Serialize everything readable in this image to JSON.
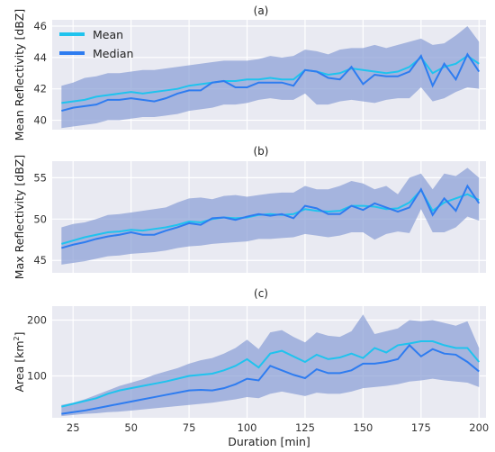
{
  "colors": {
    "mean": "#1fc3ee",
    "median": "#2e7cf0",
    "band": "#8a9fd6",
    "panel_bg": "#e9eaf2",
    "grid": "#ffffff"
  },
  "chart_data": [
    {
      "type": "line",
      "title": "(a)",
      "ylabel": "Mean Reflectivity [dBZ]",
      "xlabel": "",
      "xlim": [
        16,
        203
      ],
      "ylim": [
        39.4,
        46.4
      ],
      "xticks": [
        25,
        50,
        75,
        100,
        125,
        150,
        175,
        200
      ],
      "xtick_labels": [
        "",
        "",
        "",
        "",
        "",
        "",
        "",
        ""
      ],
      "yticks": [
        40,
        42,
        44,
        46
      ],
      "ytick_labels": [
        "40",
        "42",
        "44",
        "46"
      ],
      "grid": true,
      "legend": {
        "placement": "top-left",
        "entries": [
          "Mean",
          "Median"
        ]
      },
      "x": [
        20,
        25,
        30,
        35,
        40,
        45,
        50,
        55,
        60,
        65,
        70,
        75,
        80,
        85,
        90,
        95,
        100,
        105,
        110,
        115,
        120,
        125,
        130,
        135,
        140,
        145,
        150,
        155,
        160,
        165,
        170,
        175,
        180,
        185,
        190,
        195,
        200
      ],
      "series": [
        {
          "name": "Mean",
          "values": [
            41.1,
            41.2,
            41.3,
            41.5,
            41.6,
            41.7,
            41.8,
            41.7,
            41.8,
            41.9,
            42.0,
            42.2,
            42.3,
            42.4,
            42.5,
            42.5,
            42.6,
            42.6,
            42.7,
            42.6,
            42.6,
            43.2,
            43.1,
            42.9,
            43.0,
            43.3,
            43.2,
            43.1,
            43.0,
            43.1,
            43.4,
            44.0,
            43.0,
            43.4,
            43.6,
            44.1,
            43.6
          ]
        },
        {
          "name": "Median",
          "values": [
            40.6,
            40.8,
            40.9,
            41.0,
            41.3,
            41.3,
            41.4,
            41.3,
            41.2,
            41.4,
            41.7,
            41.9,
            41.9,
            42.4,
            42.5,
            42.1,
            42.1,
            42.4,
            42.4,
            42.4,
            42.2,
            43.2,
            43.1,
            42.7,
            42.6,
            43.4,
            42.3,
            42.9,
            42.8,
            42.8,
            43.1,
            44.1,
            42.2,
            43.6,
            42.6,
            44.2,
            43.1
          ]
        }
      ],
      "band_upper": [
        42.2,
        42.4,
        42.7,
        42.8,
        43.0,
        43.0,
        43.1,
        43.2,
        43.2,
        43.3,
        43.4,
        43.5,
        43.6,
        43.7,
        43.8,
        43.8,
        43.8,
        43.9,
        44.1,
        44.0,
        44.1,
        44.5,
        44.4,
        44.2,
        44.5,
        44.6,
        44.6,
        44.8,
        44.6,
        44.8,
        45.0,
        45.2,
        44.8,
        44.9,
        45.4,
        46.0,
        45.0
      ],
      "band_lower": [
        39.5,
        39.6,
        39.7,
        39.8,
        40.0,
        40.0,
        40.1,
        40.2,
        40.2,
        40.3,
        40.4,
        40.6,
        40.7,
        40.8,
        41.0,
        41.0,
        41.1,
        41.3,
        41.4,
        41.3,
        41.3,
        41.7,
        41.0,
        41.0,
        41.2,
        41.3,
        41.2,
        41.1,
        41.3,
        41.4,
        41.4,
        42.1,
        41.2,
        41.4,
        41.8,
        42.1,
        42.0
      ]
    },
    {
      "type": "line",
      "title": "(b)",
      "ylabel": "Max Reflectivity [dBZ]",
      "xlabel": "",
      "xlim": [
        16,
        203
      ],
      "ylim": [
        43.5,
        57.0
      ],
      "xticks": [
        25,
        50,
        75,
        100,
        125,
        150,
        175,
        200
      ],
      "xtick_labels": [
        "",
        "",
        "",
        "",
        "",
        "",
        "",
        ""
      ],
      "yticks": [
        45,
        50,
        55
      ],
      "ytick_labels": [
        "45",
        "50",
        "55"
      ],
      "grid": true,
      "x": [
        20,
        25,
        30,
        35,
        40,
        45,
        50,
        55,
        60,
        65,
        70,
        75,
        80,
        85,
        90,
        95,
        100,
        105,
        110,
        115,
        120,
        125,
        130,
        135,
        140,
        145,
        150,
        155,
        160,
        165,
        170,
        175,
        180,
        185,
        190,
        195,
        200
      ],
      "series": [
        {
          "name": "Mean",
          "values": [
            47.0,
            47.4,
            47.8,
            48.1,
            48.4,
            48.5,
            48.7,
            48.6,
            48.8,
            49.0,
            49.3,
            49.7,
            49.6,
            50.0,
            50.2,
            50.1,
            50.2,
            50.5,
            50.6,
            50.5,
            50.6,
            51.2,
            51.0,
            50.9,
            51.0,
            51.6,
            51.6,
            51.5,
            51.2,
            51.3,
            52.0,
            53.5,
            51.0,
            52.0,
            52.5,
            53.0,
            52.3
          ]
        },
        {
          "name": "Median",
          "values": [
            46.5,
            46.9,
            47.2,
            47.6,
            47.9,
            48.1,
            48.4,
            48.1,
            48.1,
            48.6,
            49.0,
            49.5,
            49.3,
            50.1,
            50.2,
            49.9,
            50.3,
            50.6,
            50.4,
            50.6,
            50.1,
            51.6,
            51.3,
            50.6,
            50.6,
            51.6,
            51.1,
            51.9,
            51.4,
            50.9,
            51.4,
            53.6,
            50.5,
            52.5,
            51.0,
            54.0,
            51.9
          ]
        }
      ],
      "band_upper": [
        49.0,
        49.4,
        49.6,
        50.0,
        50.5,
        50.6,
        50.8,
        51.0,
        51.2,
        51.4,
        52.0,
        52.5,
        52.6,
        52.4,
        52.8,
        52.9,
        52.7,
        52.9,
        53.1,
        53.2,
        53.2,
        54.0,
        53.6,
        53.6,
        54.0,
        54.6,
        54.3,
        53.6,
        54.0,
        53.0,
        55.0,
        55.5,
        53.6,
        55.5,
        55.2,
        56.2,
        55.0
      ],
      "band_lower": [
        44.5,
        44.7,
        44.9,
        45.2,
        45.5,
        45.6,
        45.8,
        45.9,
        46.0,
        46.2,
        46.5,
        46.7,
        46.8,
        47.0,
        47.1,
        47.2,
        47.3,
        47.6,
        47.6,
        47.7,
        47.8,
        48.2,
        48.0,
        47.8,
        48.0,
        48.4,
        48.4,
        47.5,
        48.2,
        48.5,
        48.3,
        51.2,
        48.4,
        48.4,
        49.0,
        50.3,
        49.8
      ]
    },
    {
      "type": "line",
      "title": "(c)",
      "ylabel": "Area [km",
      "ylabel_sup": "2",
      "ylabel_end": "]",
      "xlabel": "Duration [min]",
      "xlim": [
        16,
        203
      ],
      "ylim": [
        25,
        225
      ],
      "xticks": [
        25,
        50,
        75,
        100,
        125,
        150,
        175,
        200
      ],
      "xtick_labels": [
        "25",
        "50",
        "75",
        "100",
        "125",
        "150",
        "175",
        "200"
      ],
      "yticks": [
        100,
        200
      ],
      "ytick_labels": [
        "100",
        "200"
      ],
      "grid": true,
      "x": [
        20,
        25,
        30,
        35,
        40,
        45,
        50,
        55,
        60,
        65,
        70,
        75,
        80,
        85,
        90,
        95,
        100,
        105,
        110,
        115,
        120,
        125,
        130,
        135,
        140,
        145,
        150,
        155,
        160,
        165,
        170,
        175,
        180,
        185,
        190,
        195,
        200
      ],
      "series": [
        {
          "name": "Mean",
          "values": [
            45,
            50,
            55,
            60,
            68,
            74,
            78,
            82,
            86,
            90,
            95,
            100,
            102,
            104,
            110,
            118,
            130,
            115,
            140,
            145,
            135,
            125,
            138,
            130,
            133,
            140,
            132,
            150,
            142,
            155,
            158,
            162,
            162,
            155,
            150,
            150,
            125
          ]
        },
        {
          "name": "Median",
          "values": [
            32,
            35,
            38,
            42,
            46,
            50,
            54,
            58,
            62,
            66,
            70,
            74,
            75,
            74,
            78,
            85,
            95,
            92,
            118,
            110,
            102,
            96,
            112,
            105,
            105,
            110,
            122,
            122,
            125,
            130,
            155,
            135,
            148,
            140,
            138,
            125,
            108
          ]
        }
      ],
      "band_upper": [
        48,
        52,
        58,
        66,
        74,
        82,
        88,
        94,
        102,
        108,
        114,
        122,
        128,
        132,
        140,
        150,
        165,
        148,
        178,
        182,
        170,
        160,
        178,
        172,
        170,
        180,
        210,
        175,
        180,
        185,
        200,
        198,
        200,
        195,
        190,
        198,
        150
      ],
      "band_lower": [
        28,
        30,
        32,
        33,
        35,
        36,
        38,
        40,
        42,
        44,
        46,
        48,
        50,
        52,
        55,
        58,
        62,
        60,
        68,
        72,
        68,
        64,
        70,
        68,
        68,
        72,
        78,
        80,
        82,
        85,
        90,
        92,
        95,
        92,
        90,
        88,
        80
      ]
    }
  ]
}
